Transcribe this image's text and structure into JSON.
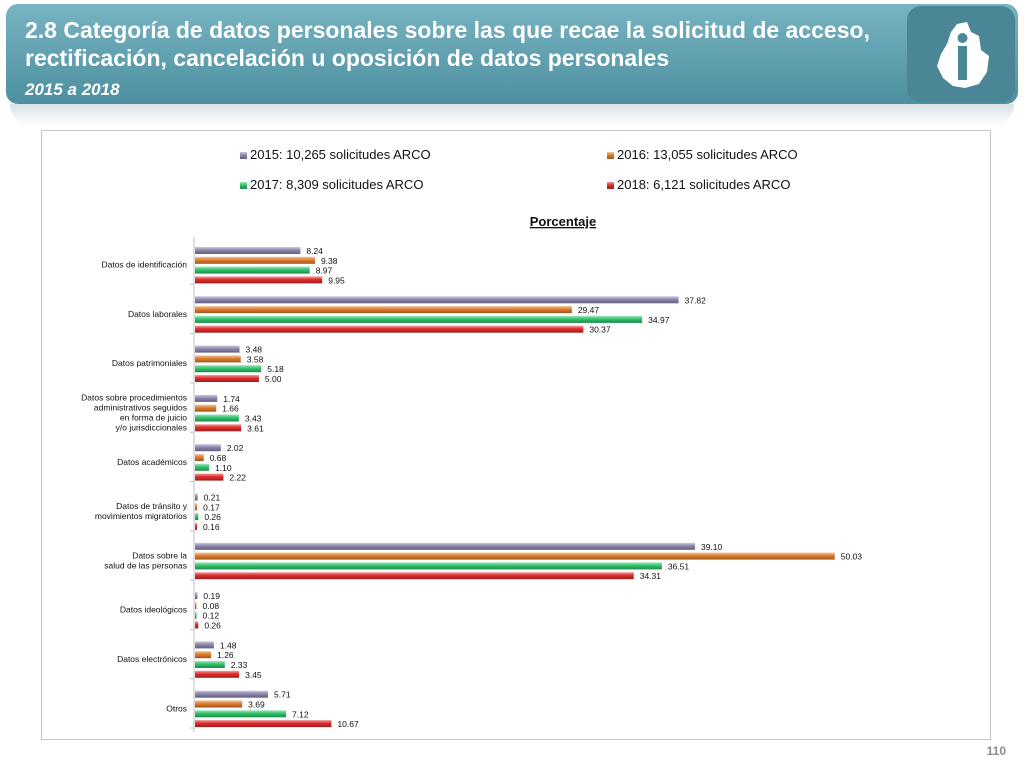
{
  "slide": {
    "title": "2.8 Categoría de datos personales sobre las que recae la solicitud de acceso, rectificación, cancelación u oposición de datos personales",
    "subtitle": "2015 a 2018",
    "page_number": "110",
    "logo_icon": "institution-logo-icon"
  },
  "colors": {
    "banner": "#5f9fad",
    "s2015": "#8e86b0",
    "s2016": "#e07c2a",
    "s2017": "#2ec46a",
    "s2018": "#e02b2b"
  },
  "chart_data": {
    "type": "bar",
    "orientation": "horizontal",
    "title": "Porcentaje",
    "xlim": [
      0,
      55
    ],
    "grid": false,
    "legend_position": "top",
    "categories": [
      [
        "Datos de identificación"
      ],
      [
        "Datos laborales"
      ],
      [
        "Datos patrimoniales"
      ],
      [
        "Datos sobre procedimientos",
        "administrativos seguidos",
        "en forma de juicio",
        "y/o jurisdiccionales"
      ],
      [
        "Datos académicos"
      ],
      [
        "Datos de tránsito y",
        "movimientos migratorios"
      ],
      [
        "Datos sobre la",
        "salud de las personas"
      ],
      [
        "Datos ideológicos"
      ],
      [
        "Datos electrónicos"
      ],
      [
        "Otros"
      ]
    ],
    "series": [
      {
        "name": "2015: 10,265 solicitudes ARCO",
        "color": "#8e86b0",
        "values": [
          "8.24",
          "37.82",
          "3.48",
          "1.74",
          "2.02",
          "0.21",
          "39.10",
          "0.19",
          "1.48",
          "5.71"
        ]
      },
      {
        "name": "2016: 13,055 solicitudes ARCO",
        "color": "#e07c2a",
        "values": [
          "9.38",
          "29.47",
          "3.58",
          "1.66",
          "0.68",
          "0.17",
          "50.03",
          "0.08",
          "1.26",
          "3.69"
        ]
      },
      {
        "name": "2017: 8,309 solicitudes ARCO",
        "color": "#2ec46a",
        "values": [
          "8.97",
          "34.97",
          "5.18",
          "3.43",
          "1.10",
          "0.26",
          "36.51",
          "0.12",
          "2.33",
          "7.12"
        ]
      },
      {
        "name": "2018: 6,121 solicitudes ARCO",
        "color": "#e02b2b",
        "values": [
          "9.95",
          "30.37",
          "5.00",
          "3.61",
          "2.22",
          "0.16",
          "34.31",
          "0.26",
          "3.45",
          "10.67"
        ]
      }
    ]
  }
}
